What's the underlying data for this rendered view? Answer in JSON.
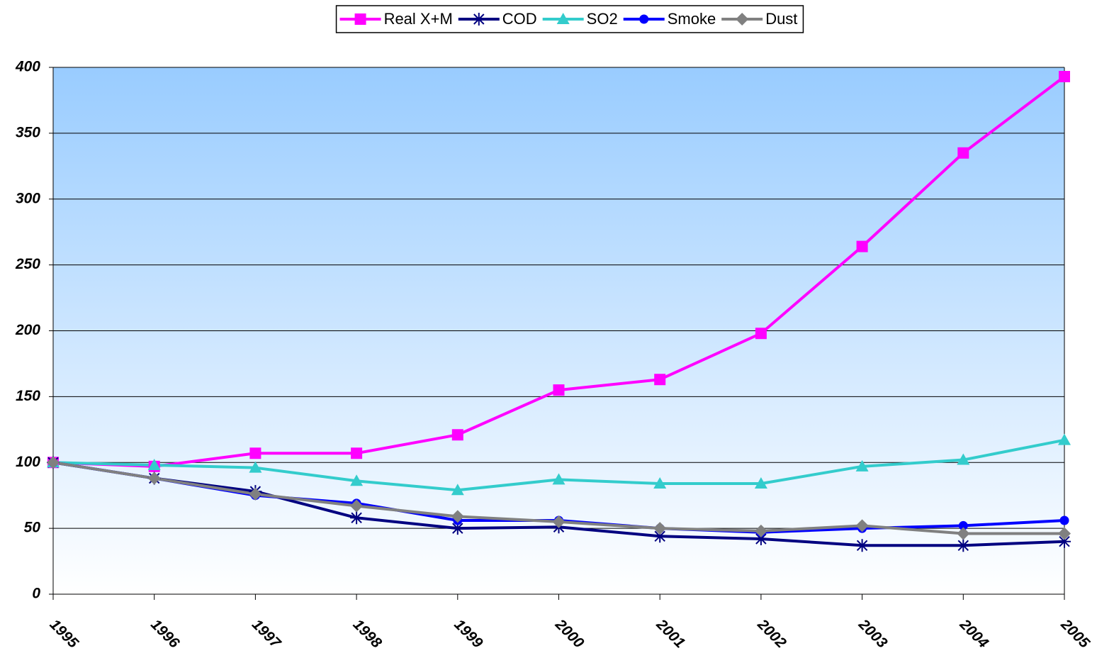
{
  "chart_data": {
    "type": "line",
    "categories": [
      "1995",
      "1996",
      "1997",
      "1998",
      "1999",
      "2000",
      "2001",
      "2002",
      "2003",
      "2004",
      "2005"
    ],
    "series": [
      {
        "name": "Real X+M",
        "color": "#ff00ff",
        "marker": "square",
        "values": [
          100,
          97,
          107,
          107,
          121,
          155,
          163,
          198,
          264,
          335,
          393
        ]
      },
      {
        "name": "COD",
        "color": "#000080",
        "marker": "star",
        "values": [
          100,
          88,
          78,
          58,
          50,
          51,
          44,
          42,
          37,
          37,
          40
        ]
      },
      {
        "name": "SO2",
        "color": "#33cccc",
        "marker": "triangle",
        "values": [
          100,
          98,
          96,
          86,
          79,
          87,
          84,
          84,
          97,
          102,
          117
        ]
      },
      {
        "name": "Smoke",
        "color": "#0000ff",
        "marker": "circle",
        "values": [
          100,
          88,
          75,
          69,
          56,
          56,
          50,
          47,
          50,
          52,
          56
        ]
      },
      {
        "name": "Dust",
        "color": "#808080",
        "marker": "diamond",
        "values": [
          100,
          88,
          76,
          67,
          59,
          55,
          50,
          48,
          52,
          46,
          46
        ]
      }
    ],
    "ylim": [
      0,
      400
    ],
    "yticks": [
      0,
      50,
      100,
      150,
      200,
      250,
      300,
      350,
      400
    ],
    "grid": true,
    "legend": "top"
  }
}
